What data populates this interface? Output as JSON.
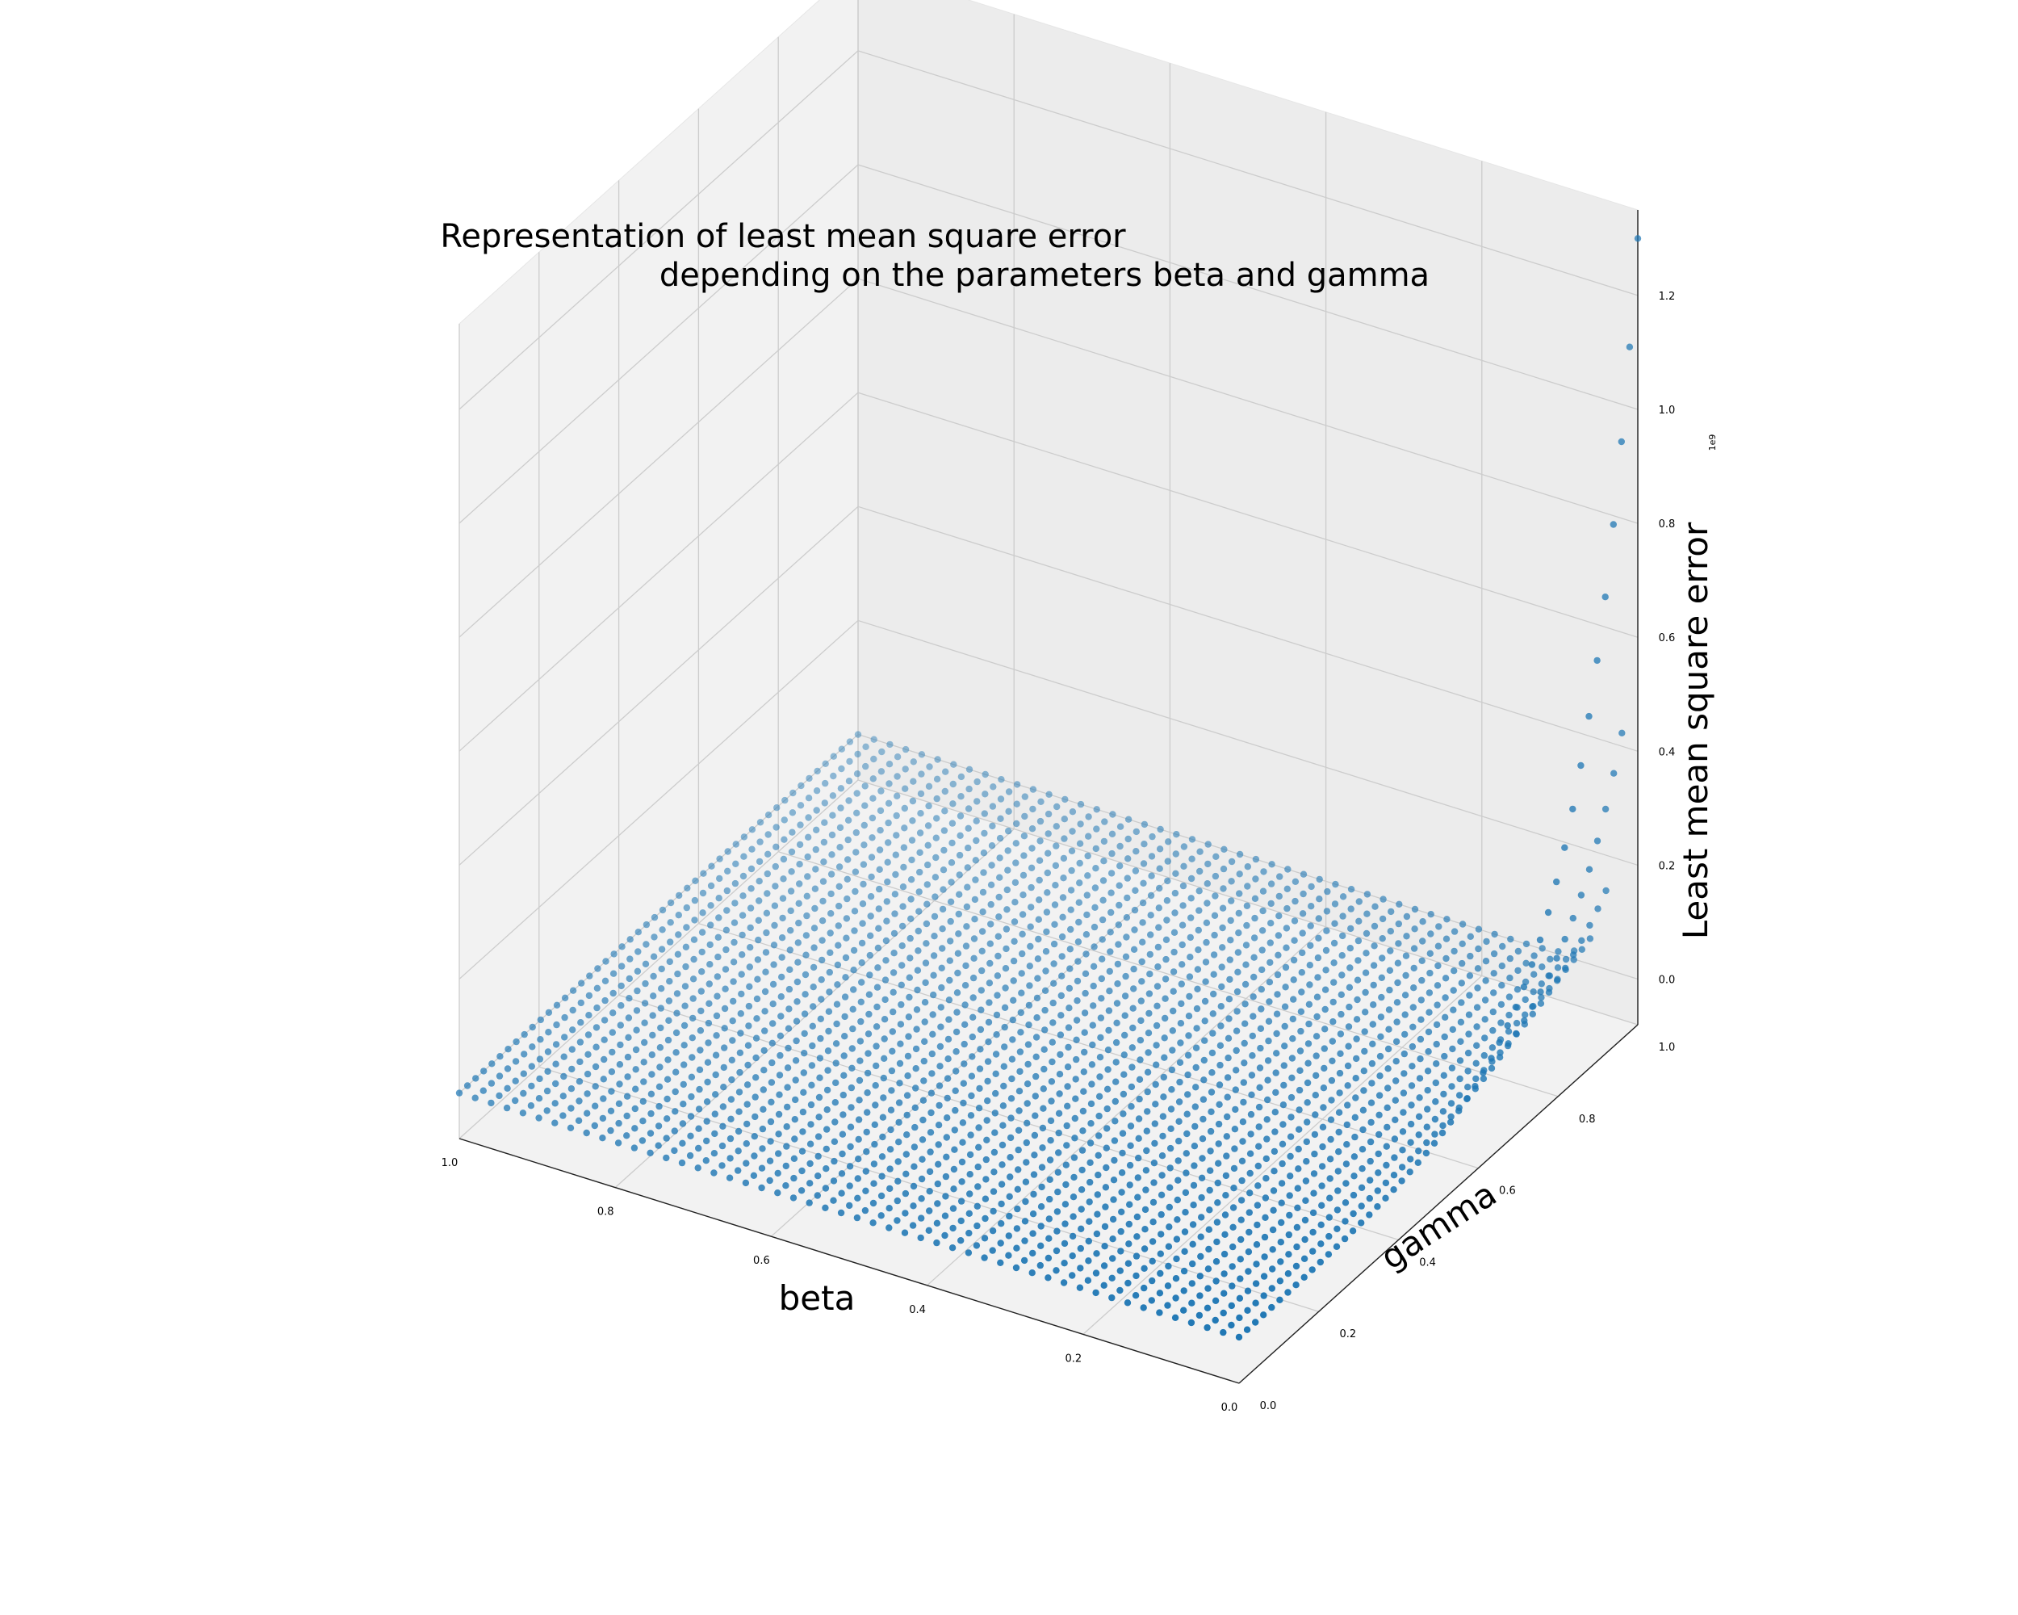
{
  "chart_data": {
    "type": "scatter",
    "projection": "3d",
    "title": [
      "Representation of least mean square error",
      "depending on the parameters beta and gamma"
    ],
    "xlabel": "beta",
    "ylabel": "gamma",
    "zlabel": "Least mean square error",
    "x_ticks": [
      "0.0",
      "0.2",
      "0.4",
      "0.6",
      "0.8",
      "1.0"
    ],
    "y_ticks": [
      "0.0",
      "0.2",
      "0.4",
      "0.6",
      "0.8",
      "1.0"
    ],
    "z_ticks": [
      "0.0",
      "0.2",
      "0.4",
      "0.6",
      "0.8",
      "1.0",
      "1.2"
    ],
    "z_offset_text": "1e9",
    "xlim": [
      0,
      1
    ],
    "ylim": [
      0,
      1
    ],
    "zlim": [
      -0.08,
      1.35
    ],
    "z_scale": 1000000000,
    "grid": true,
    "marker_color": "#1f77b4",
    "pane_color": "#f2f2f2",
    "grid_color": "#cccccc",
    "series": [
      {
        "grid_x": {
          "start": 0.0,
          "stop": 1.0,
          "points": 50
        },
        "grid_y": {
          "start": 0.0,
          "stop": 1.0,
          "points": 50
        },
        "surface": "near 0 except as beta approaches 0 and gamma approaches 1, where it rises steeply",
        "notable_points": [
          {
            "beta": 0.0,
            "gamma": 1.0,
            "value": 1300000000.0
          },
          {
            "beta": 0.0,
            "gamma": 0.98,
            "value": 1100000000.0
          },
          {
            "beta": 0.0,
            "gamma": 0.96,
            "value": 950000000.0
          },
          {
            "beta": 0.0,
            "gamma": 0.9,
            "value": 620000000.0
          },
          {
            "beta": 0.0,
            "gamma": 0.8,
            "value": 360000000.0
          },
          {
            "beta": 0.0,
            "gamma": 0.7,
            "value": 50000000.0
          },
          {
            "beta": 1.0,
            "gamma": 1.0,
            "value": 0.0
          }
        ]
      }
    ]
  }
}
